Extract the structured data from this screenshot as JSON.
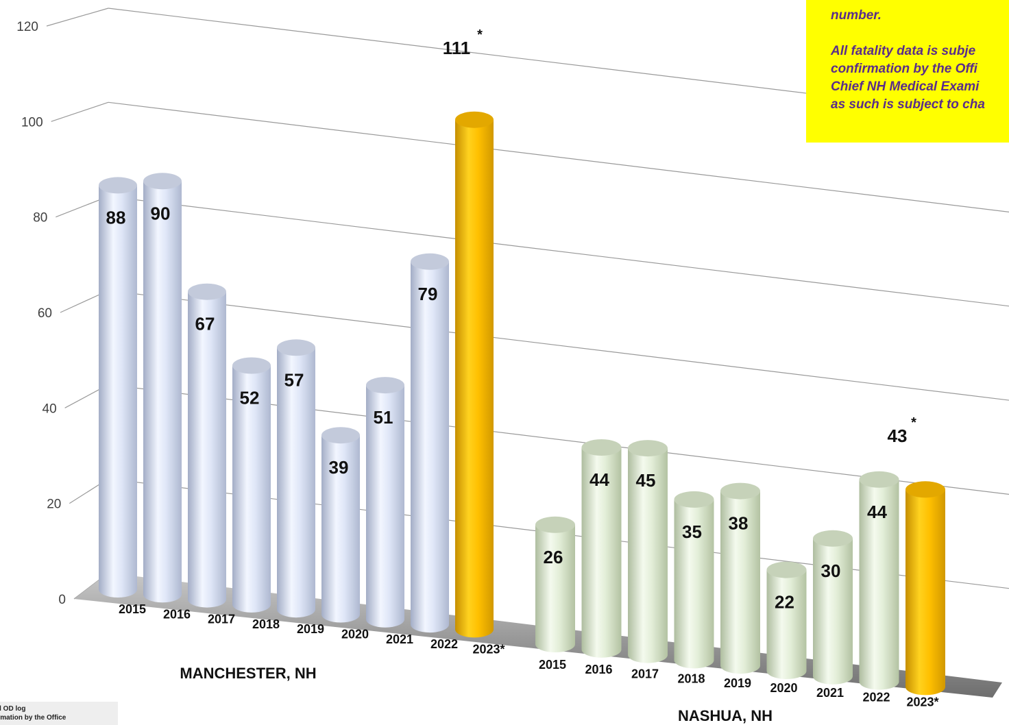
{
  "chart_data": {
    "type": "bar",
    "y_axis": {
      "ticks": [
        "0",
        "20",
        "40",
        "60",
        "80",
        "100",
        "120"
      ],
      "ylim": [
        0,
        120
      ]
    },
    "grid": true,
    "groups": [
      {
        "name": "MANCHESTER, NH",
        "categories": [
          "2015",
          "2016",
          "2017",
          "2018",
          "2019",
          "2020",
          "2021",
          "2022",
          "2023*"
        ],
        "values": [
          88,
          90,
          67,
          52,
          57,
          39,
          51,
          79,
          111
        ],
        "labels": [
          "88",
          "90",
          "67",
          "52",
          "57",
          "39",
          "51",
          "79",
          "111"
        ]
      },
      {
        "name": "NASHUA, NH",
        "categories": [
          "2015",
          "2016",
          "2017",
          "2018",
          "2019",
          "2020",
          "2021",
          "2022",
          "2023*"
        ],
        "values": [
          26,
          44,
          45,
          35,
          38,
          22,
          30,
          44,
          43
        ],
        "labels": [
          "26",
          "44",
          "45",
          "35",
          "38",
          "22",
          "30",
          "44",
          "43"
        ]
      }
    ],
    "highlight_marker": "*",
    "colors": {
      "manchester": "#dfe6f7",
      "nashua": "#e6f2dd",
      "highlight": "#ffc000",
      "grid": "#999999",
      "floor": "#8c8c8c"
    }
  },
  "note": {
    "lines": [
      "number.",
      "All fatality data is subje",
      "confirmation by the Offi",
      "Chief NH Medical Exami",
      "as such is subject to cha"
    ]
  },
  "footnote": {
    "lines": [
      "pioid OD log",
      "onfirmation by the Office"
    ]
  }
}
